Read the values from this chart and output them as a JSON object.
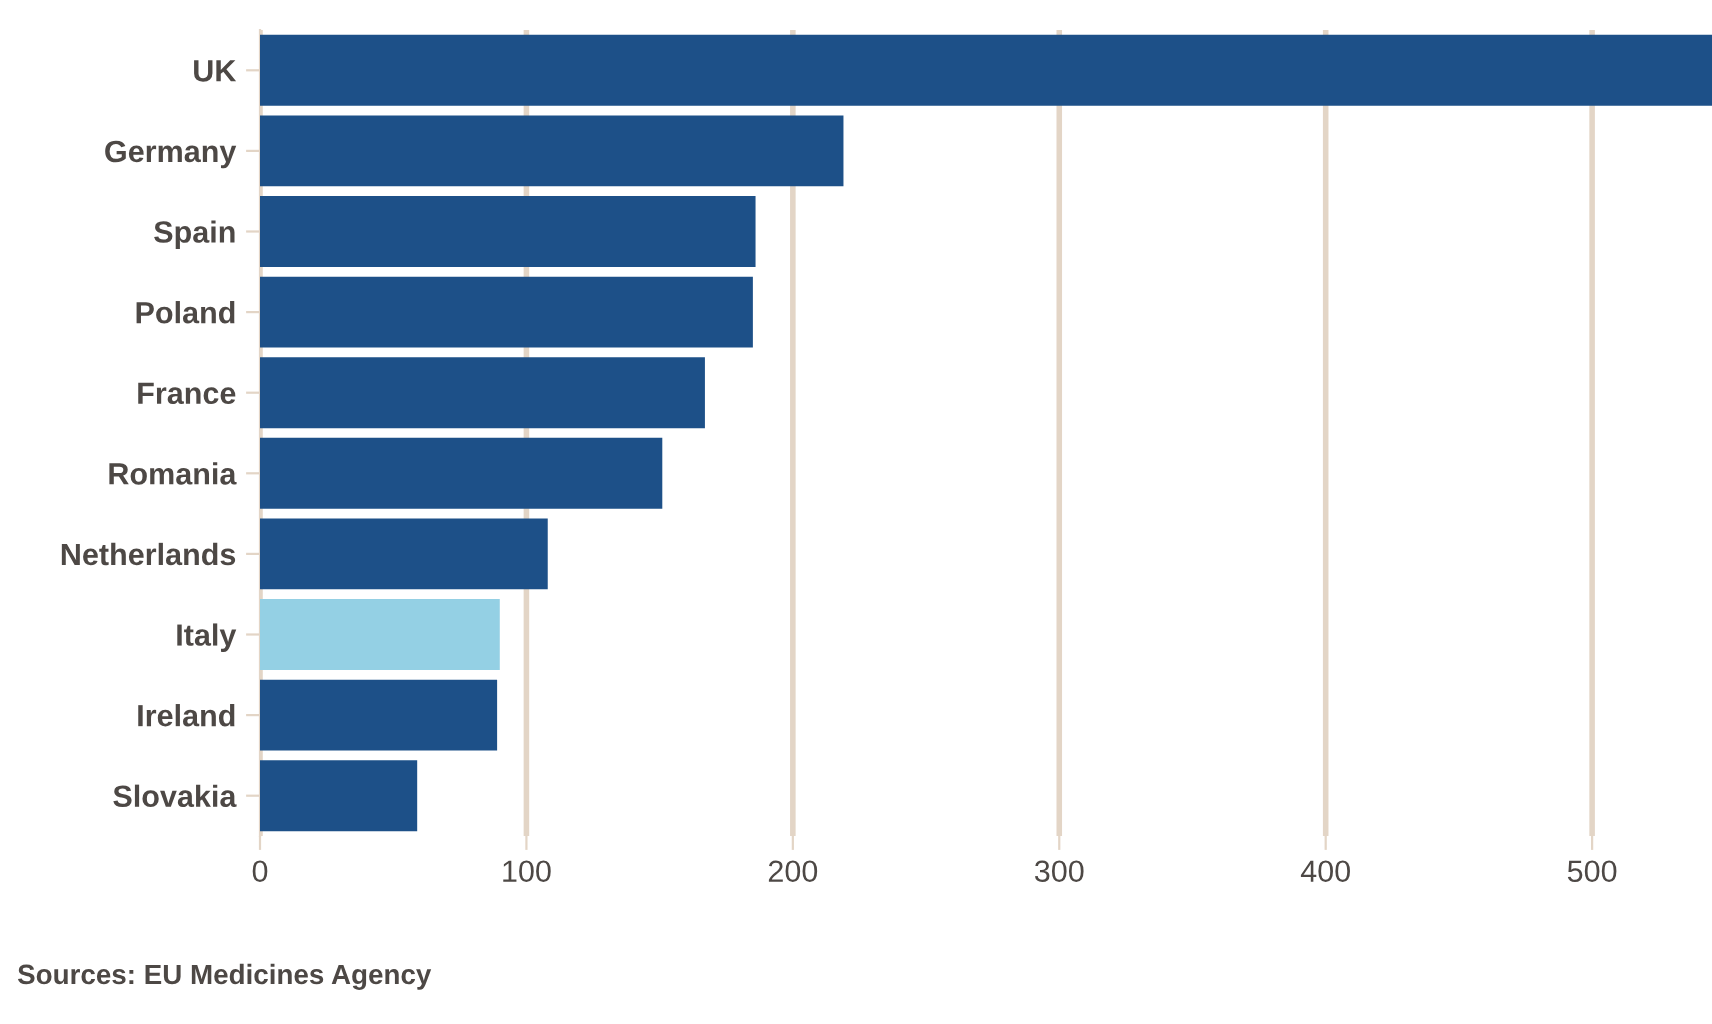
{
  "chart_data": {
    "type": "bar",
    "orientation": "horizontal",
    "categories": [
      "UK",
      "Germany",
      "Spain",
      "Poland",
      "France",
      "Romania",
      "Netherlands",
      "Italy",
      "Ireland",
      "Slovakia"
    ],
    "values": [
      545,
      219,
      186,
      185,
      167,
      151,
      108,
      90,
      89,
      59
    ],
    "colors": [
      "#1d5088",
      "#1d5088",
      "#1d5088",
      "#1d5088",
      "#1d5088",
      "#1d5088",
      "#1d5088",
      "#94d0e4",
      "#1d5088",
      "#1d5088"
    ],
    "xlim": [
      0,
      545
    ],
    "xticks": [
      0,
      100,
      200,
      300,
      400,
      500
    ],
    "grid": "x",
    "annotations": [
      "Sources: EU Medicines Agency"
    ]
  }
}
